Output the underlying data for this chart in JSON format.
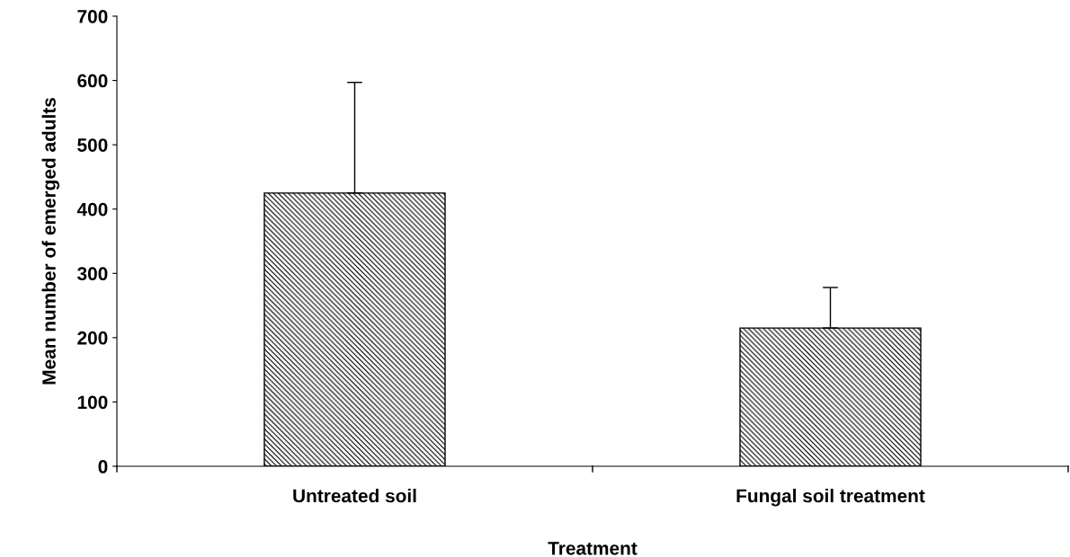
{
  "chart_data": {
    "type": "bar",
    "xlabel": "Treatment",
    "ylabel": "Mean number of emerged adults",
    "categories": [
      "Untreated soil",
      "Fungal soil treatment"
    ],
    "values": [
      425,
      215
    ],
    "errors": [
      [
        425,
        597
      ],
      [
        215,
        278
      ]
    ],
    "color": "#000000",
    "ylim": [
      0,
      700
    ],
    "yticks": [
      0,
      100,
      200,
      300,
      400,
      500,
      600,
      700
    ],
    "grid": false
  }
}
